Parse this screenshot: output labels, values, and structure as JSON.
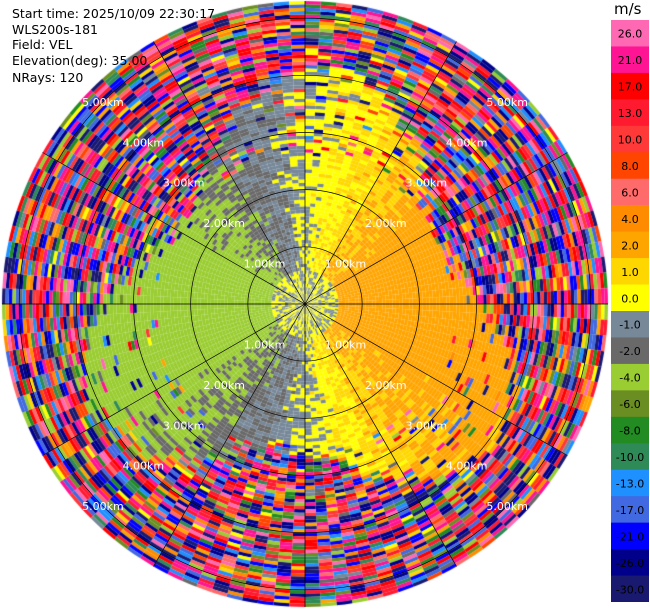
{
  "header": {
    "start_time": "Start time: 2025/10/09 22:30:17",
    "instrument": "WLS200s-181",
    "field": "Field: VEL",
    "elevation": "Elevation(deg): 35.00",
    "nrays": "NRays: 120"
  },
  "chart_data": {
    "type": "heatmap",
    "projection": "polar PPI",
    "field": "VEL",
    "n_rays": 120,
    "elevation_deg": 35.0,
    "max_range_km": 5.3,
    "range_rings_km": [
      1,
      2,
      3,
      4,
      5
    ],
    "range_labels": [
      "1.00km",
      "2.00km",
      "3.00km",
      "4.00km",
      "5.00km"
    ],
    "pattern": "Positive (yellow, 2-4 m/s) to the east, negative (green, -2 to -4 m/s) to the west, near-zero (grey) to north and south within about 3 km; noisy random velocities beyond about 3.5 km",
    "colorbar": {
      "unit": "m/s",
      "labels": [
        "26.0",
        "21.0",
        "17.0",
        "13.0",
        "10.0",
        "8.0",
        "6.0",
        "4.0",
        "2.0",
        "1.0",
        "0.0",
        "-1.0",
        "-2.0",
        "-4.0",
        "-6.0",
        "-8.0",
        "-10.0",
        "-13.0",
        "-17.0",
        "-21.0",
        "-26.0",
        "-30.0"
      ],
      "colors": [
        "#ff69b4",
        "#ff1493",
        "#ff0000",
        "#ff1a30",
        "#ff3838",
        "#ff4500",
        "#ff6a6a",
        "#ff8c00",
        "#ffa500",
        "#ffd700",
        "#ffff00",
        "#778899",
        "#696969",
        "#9acd32",
        "#6b8e23",
        "#228b22",
        "#2e8b57",
        "#1e90ff",
        "#4169e1",
        "#0000ff",
        "#00008b",
        "#191970"
      ]
    }
  }
}
